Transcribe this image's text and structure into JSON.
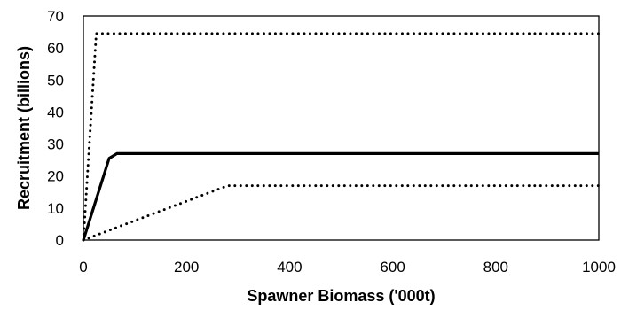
{
  "chart_data": {
    "type": "line",
    "xlabel": "Spawner Biomass ('000t)",
    "ylabel": "Recruitment (billions)",
    "xlim": [
      0,
      1000
    ],
    "ylim": [
      0,
      70
    ],
    "x_ticks": [
      0,
      200,
      400,
      600,
      800,
      1000
    ],
    "y_ticks": [
      0,
      10,
      20,
      30,
      40,
      50,
      60,
      70
    ],
    "grid": false,
    "legend": "none",
    "series": [
      {
        "style": "dotted",
        "color": "#000000",
        "points": [
          [
            0,
            0
          ],
          [
            25,
            64.5
          ],
          [
            1000,
            64.5
          ]
        ]
      },
      {
        "style": "solid",
        "color": "#000000",
        "points": [
          [
            0,
            0
          ],
          [
            50,
            25.5
          ],
          [
            65,
            27
          ],
          [
            1000,
            27
          ]
        ]
      },
      {
        "style": "dotted",
        "color": "#000000",
        "points": [
          [
            0,
            0
          ],
          [
            280,
            17
          ],
          [
            1000,
            17
          ]
        ]
      }
    ]
  }
}
